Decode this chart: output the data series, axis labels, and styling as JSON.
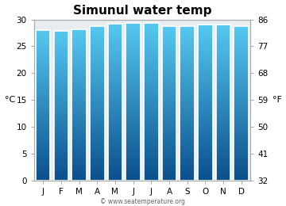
{
  "title": "Simunul water temp",
  "months": [
    "J",
    "F",
    "M",
    "A",
    "M",
    "J",
    "J",
    "A",
    "S",
    "O",
    "N",
    "D"
  ],
  "values_c": [
    28.0,
    27.9,
    28.2,
    28.8,
    29.2,
    29.4,
    29.3,
    28.7,
    28.8,
    29.1,
    29.1,
    28.7
  ],
  "ylim_c": [
    0,
    30
  ],
  "yticks_c": [
    0,
    5,
    10,
    15,
    20,
    25,
    30
  ],
  "yticks_f": [
    32,
    41,
    50,
    59,
    68,
    77,
    86
  ],
  "ylabel_left": "°C",
  "ylabel_right": "°F",
  "color_top": "#55C8F0",
  "color_bottom": "#0A4F8C",
  "bar_edge_color": "#ffffff",
  "bg_color": "#ffffff",
  "plot_bg_color": "#e8edf0",
  "title_fontsize": 11,
  "axis_fontsize": 8,
  "tick_fontsize": 7.5,
  "watermark": "© www.seatemperature.org"
}
